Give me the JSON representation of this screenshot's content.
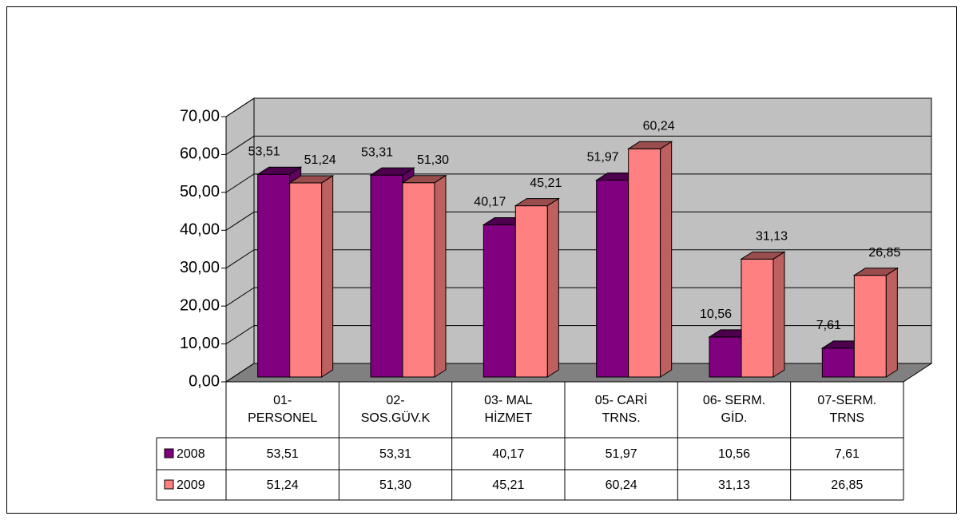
{
  "chart_data": {
    "type": "bar3d",
    "categories": [
      "01-\nPERSONEL",
      "02-\nSOS.GÜV.K",
      "03- MAL\nHİZMET",
      "05- CARİ\nTRNS.",
      "06- SERM.\nGİD.",
      "07-SERM.\nTRNS"
    ],
    "series": [
      {
        "name": "2008",
        "color": "#800080",
        "values": [
          53.51,
          53.31,
          40.17,
          51.97,
          10.56,
          7.61
        ],
        "value_labels": [
          "53,51",
          "53,31",
          "40,17",
          "51,97",
          "10,56",
          "7,61"
        ]
      },
      {
        "name": "2009",
        "color": "#ff8080",
        "values": [
          51.24,
          51.3,
          45.21,
          60.24,
          31.13,
          26.85
        ],
        "value_labels": [
          "51,24",
          "51,30",
          "45,21",
          "60,24",
          "31,13",
          "26,85"
        ]
      }
    ],
    "ylim": [
      0,
      70
    ],
    "yticks": [
      {
        "value": 0,
        "label": "0,00"
      },
      {
        "value": 10,
        "label": "10,00"
      },
      {
        "value": 20,
        "label": "20,00"
      },
      {
        "value": 30,
        "label": "30,00"
      },
      {
        "value": 40,
        "label": "40,00"
      },
      {
        "value": 50,
        "label": "50,00"
      },
      {
        "value": 60,
        "label": "60,00"
      },
      {
        "value": 70,
        "label": "70,00"
      }
    ],
    "grid": true,
    "data_table": true
  }
}
